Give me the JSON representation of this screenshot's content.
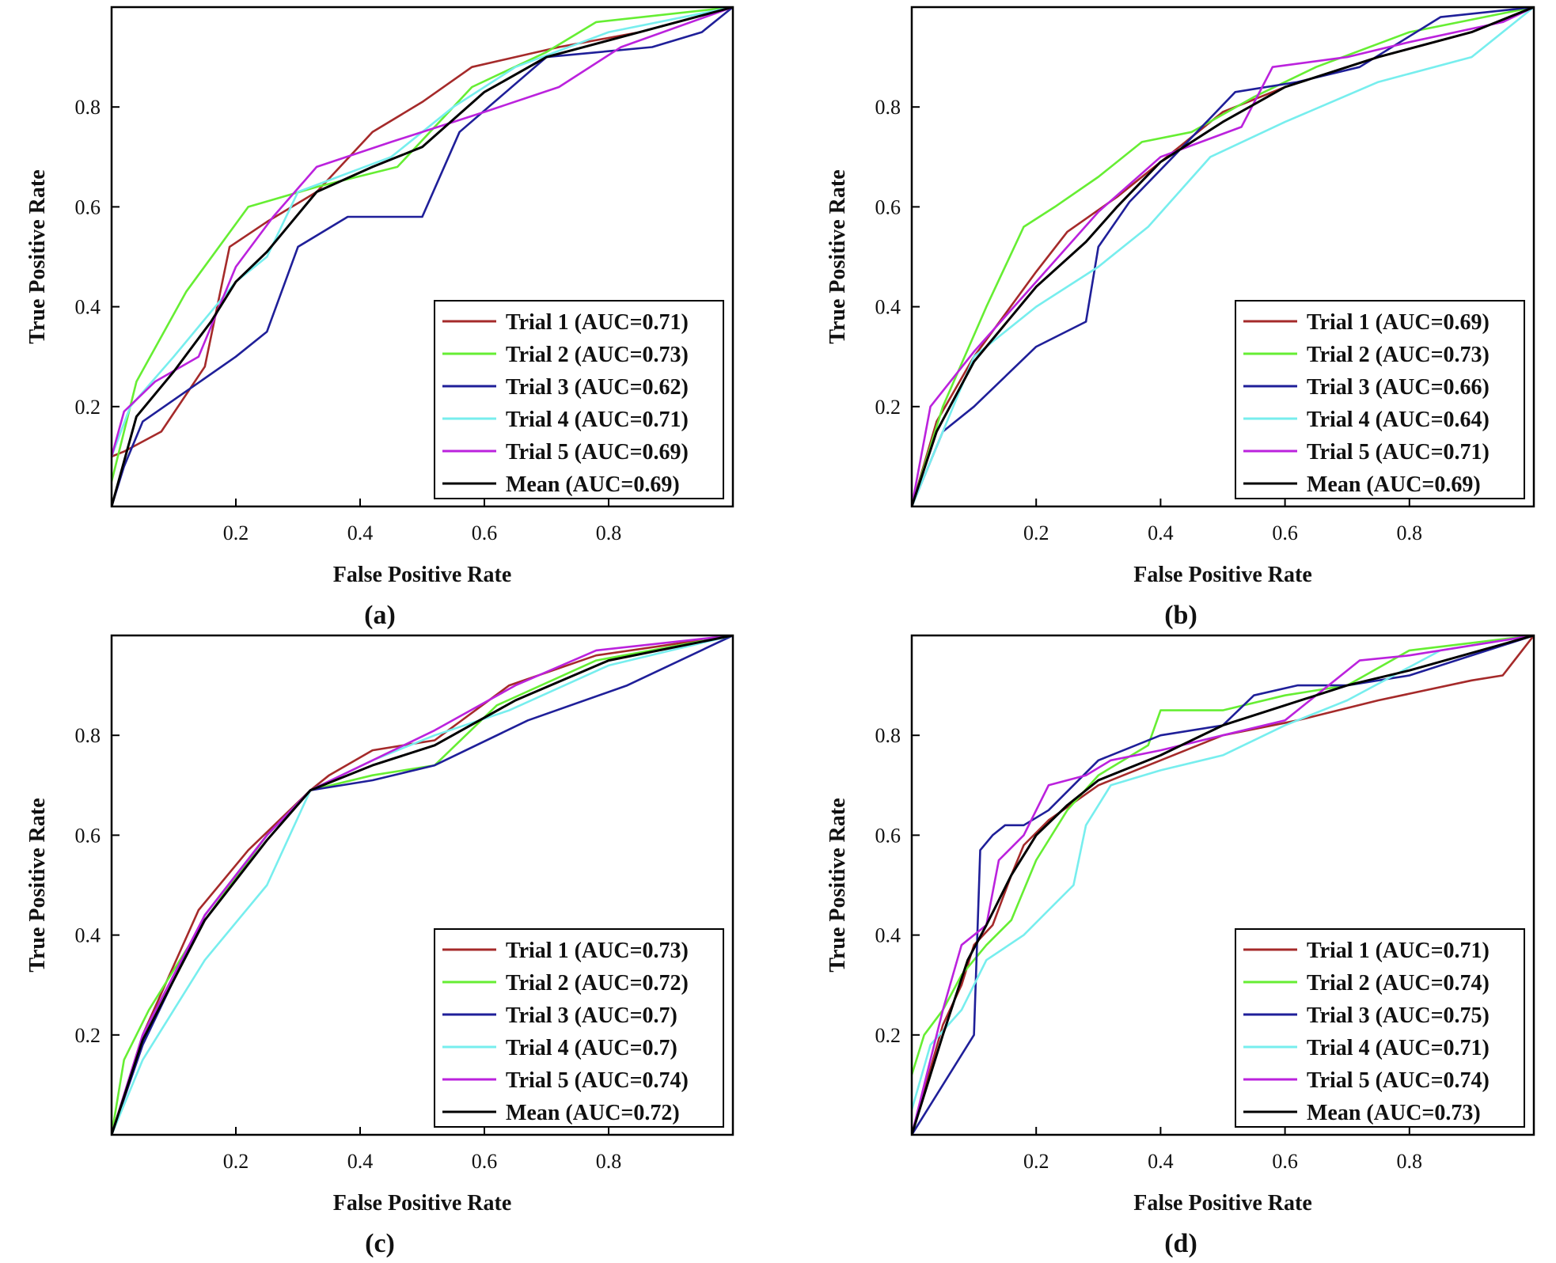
{
  "colors": {
    "trial1": "#a52a2a",
    "trial2": "#66ee33",
    "trial3": "#1f1f99",
    "trial4": "#77eeee",
    "trial5": "#bb22dd",
    "mean": "#000000"
  },
  "chart_data": [
    {
      "type": "line",
      "panel_label": "(a)",
      "xlabel": "False Positive Rate",
      "ylabel": "True Positive Rate",
      "xlim": [
        0,
        1
      ],
      "ylim": [
        0,
        1
      ],
      "xticks": [
        "0.2",
        "0.4",
        "0.6",
        "0.8"
      ],
      "yticks": [
        "0.2",
        "0.4",
        "0.6",
        "0.8"
      ],
      "legend_position": "bottom-right",
      "series": [
        {
          "name": "Trial 1 (AUC=0.71)",
          "color_key": "trial1",
          "x": [
            0,
            0.02,
            0.08,
            0.15,
            0.19,
            0.25,
            0.33,
            0.42,
            0.5,
            0.58,
            0.72,
            0.85,
            1
          ],
          "y": [
            0.1,
            0.11,
            0.15,
            0.28,
            0.52,
            0.57,
            0.63,
            0.75,
            0.81,
            0.88,
            0.92,
            0.95,
            1
          ]
        },
        {
          "name": "Trial 2 (AUC=0.73)",
          "color_key": "trial2",
          "x": [
            0,
            0.04,
            0.12,
            0.22,
            0.33,
            0.46,
            0.58,
            0.7,
            0.78,
            1
          ],
          "y": [
            0.05,
            0.25,
            0.43,
            0.6,
            0.64,
            0.68,
            0.84,
            0.91,
            0.97,
            1
          ]
        },
        {
          "name": "Trial 3 (AUC=0.62)",
          "color_key": "trial3",
          "x": [
            0,
            0.02,
            0.05,
            0.2,
            0.25,
            0.3,
            0.38,
            0.5,
            0.56,
            0.7,
            0.87,
            0.95,
            1
          ],
          "y": [
            0,
            0.08,
            0.17,
            0.3,
            0.35,
            0.52,
            0.58,
            0.58,
            0.75,
            0.9,
            0.92,
            0.95,
            1
          ]
        },
        {
          "name": "Trial 4 (AUC=0.71)",
          "color_key": "trial4",
          "x": [
            0,
            0.03,
            0.1,
            0.2,
            0.25,
            0.3,
            0.45,
            0.55,
            0.65,
            0.8,
            1
          ],
          "y": [
            0.1,
            0.2,
            0.3,
            0.45,
            0.5,
            0.63,
            0.7,
            0.8,
            0.88,
            0.95,
            1
          ]
        },
        {
          "name": "Trial 5 (AUC=0.69)",
          "color_key": "trial5",
          "x": [
            0,
            0.02,
            0.07,
            0.14,
            0.2,
            0.26,
            0.33,
            0.45,
            0.6,
            0.72,
            0.82,
            1
          ],
          "y": [
            0.1,
            0.19,
            0.25,
            0.3,
            0.48,
            0.58,
            0.68,
            0.73,
            0.79,
            0.84,
            0.92,
            1
          ]
        },
        {
          "name": "Mean (AUC=0.69)",
          "color_key": "mean",
          "x": [
            0,
            0.04,
            0.1,
            0.16,
            0.2,
            0.25,
            0.33,
            0.42,
            0.5,
            0.6,
            0.7,
            0.85,
            1
          ],
          "y": [
            0,
            0.18,
            0.27,
            0.37,
            0.45,
            0.51,
            0.63,
            0.68,
            0.72,
            0.83,
            0.9,
            0.95,
            1
          ]
        }
      ]
    },
    {
      "type": "line",
      "panel_label": "(b)",
      "xlabel": "False Positive Rate",
      "ylabel": "True Positive Rate",
      "xlim": [
        0,
        1
      ],
      "ylim": [
        0,
        1
      ],
      "xticks": [
        "0.2",
        "0.4",
        "0.6",
        "0.8"
      ],
      "yticks": [
        "0.2",
        "0.4",
        "0.6",
        "0.8"
      ],
      "legend_position": "bottom-right",
      "series": [
        {
          "name": "Trial 1 (AUC=0.69)",
          "color_key": "trial1",
          "x": [
            0,
            0.04,
            0.1,
            0.2,
            0.25,
            0.33,
            0.42,
            0.5,
            0.6,
            0.75,
            0.9,
            1
          ],
          "y": [
            0,
            0.17,
            0.3,
            0.47,
            0.55,
            0.62,
            0.71,
            0.79,
            0.84,
            0.9,
            0.95,
            1
          ]
        },
        {
          "name": "Trial 2 (AUC=0.73)",
          "color_key": "trial2",
          "x": [
            0,
            0.05,
            0.12,
            0.18,
            0.23,
            0.3,
            0.37,
            0.45,
            0.55,
            0.65,
            0.8,
            1
          ],
          "y": [
            0,
            0.2,
            0.4,
            0.56,
            0.6,
            0.66,
            0.73,
            0.75,
            0.82,
            0.88,
            0.95,
            1
          ]
        },
        {
          "name": "Trial 3 (AUC=0.66)",
          "color_key": "trial3",
          "x": [
            0,
            0.05,
            0.1,
            0.2,
            0.28,
            0.3,
            0.35,
            0.42,
            0.52,
            0.62,
            0.72,
            0.85,
            1
          ],
          "y": [
            0,
            0.15,
            0.2,
            0.32,
            0.37,
            0.52,
            0.61,
            0.7,
            0.83,
            0.85,
            0.88,
            0.98,
            1
          ]
        },
        {
          "name": "Trial 4 (AUC=0.64)",
          "color_key": "trial4",
          "x": [
            0,
            0.05,
            0.1,
            0.2,
            0.3,
            0.38,
            0.48,
            0.6,
            0.75,
            0.9,
            1
          ],
          "y": [
            0,
            0.15,
            0.3,
            0.4,
            0.48,
            0.56,
            0.7,
            0.77,
            0.85,
            0.9,
            1
          ]
        },
        {
          "name": "Trial 5 (AUC=0.71)",
          "color_key": "trial5",
          "x": [
            0,
            0.03,
            0.1,
            0.2,
            0.3,
            0.4,
            0.53,
            0.58,
            0.7,
            0.8,
            0.95,
            1
          ],
          "y": [
            0,
            0.2,
            0.31,
            0.45,
            0.59,
            0.7,
            0.76,
            0.88,
            0.9,
            0.93,
            0.97,
            1
          ]
        },
        {
          "name": "Mean (AUC=0.69)",
          "color_key": "mean",
          "x": [
            0,
            0.04,
            0.1,
            0.2,
            0.28,
            0.33,
            0.4,
            0.5,
            0.6,
            0.75,
            0.9,
            1
          ],
          "y": [
            0,
            0.15,
            0.29,
            0.44,
            0.53,
            0.6,
            0.69,
            0.77,
            0.84,
            0.9,
            0.95,
            1
          ]
        }
      ]
    },
    {
      "type": "line",
      "panel_label": "(c)",
      "xlabel": "False Positive Rate",
      "ylabel": "True Positive Rate",
      "xlim": [
        0,
        1
      ],
      "ylim": [
        0,
        1
      ],
      "xticks": [
        "0.2",
        "0.4",
        "0.6",
        "0.8"
      ],
      "yticks": [
        "0.2",
        "0.4",
        "0.6",
        "0.8"
      ],
      "legend_position": "bottom-right",
      "series": [
        {
          "name": "Trial 1 (AUC=0.73)",
          "color_key": "trial1",
          "x": [
            0,
            0.05,
            0.14,
            0.22,
            0.32,
            0.35,
            0.42,
            0.52,
            0.64,
            0.78,
            1
          ],
          "y": [
            0,
            0.2,
            0.45,
            0.57,
            0.69,
            0.72,
            0.77,
            0.79,
            0.9,
            0.96,
            1
          ]
        },
        {
          "name": "Trial 2 (AUC=0.72)",
          "color_key": "trial2",
          "x": [
            0,
            0.02,
            0.06,
            0.15,
            0.25,
            0.32,
            0.42,
            0.52,
            0.62,
            0.78,
            1
          ],
          "y": [
            0,
            0.15,
            0.25,
            0.43,
            0.6,
            0.69,
            0.72,
            0.74,
            0.86,
            0.95,
            1
          ]
        },
        {
          "name": "Trial 3 (AUC=0.7)",
          "color_key": "trial3",
          "x": [
            0,
            0.05,
            0.15,
            0.25,
            0.32,
            0.42,
            0.52,
            0.67,
            0.83,
            1
          ],
          "y": [
            0,
            0.18,
            0.44,
            0.6,
            0.69,
            0.71,
            0.74,
            0.83,
            0.9,
            1
          ]
        },
        {
          "name": "Trial 4 (AUC=0.7)",
          "color_key": "trial4",
          "x": [
            0,
            0.05,
            0.15,
            0.25,
            0.32,
            0.42,
            0.52,
            0.64,
            0.8,
            1
          ],
          "y": [
            0,
            0.15,
            0.35,
            0.5,
            0.69,
            0.75,
            0.8,
            0.85,
            0.94,
            1
          ]
        },
        {
          "name": "Trial 5 (AUC=0.74)",
          "color_key": "trial5",
          "x": [
            0,
            0.05,
            0.15,
            0.25,
            0.32,
            0.42,
            0.52,
            0.65,
            0.78,
            1
          ],
          "y": [
            0,
            0.2,
            0.44,
            0.6,
            0.69,
            0.75,
            0.81,
            0.9,
            0.97,
            1
          ]
        },
        {
          "name": "Mean (AUC=0.72)",
          "color_key": "mean",
          "x": [
            0,
            0.05,
            0.15,
            0.25,
            0.32,
            0.42,
            0.52,
            0.65,
            0.8,
            1
          ],
          "y": [
            0,
            0.19,
            0.43,
            0.59,
            0.69,
            0.74,
            0.78,
            0.87,
            0.95,
            1
          ]
        }
      ]
    },
    {
      "type": "line",
      "panel_label": "(d)",
      "xlabel": "False Positive Rate",
      "ylabel": "True Positive Rate",
      "xlim": [
        0,
        1
      ],
      "ylim": [
        0,
        1
      ],
      "xticks": [
        "0.2",
        "0.4",
        "0.6",
        "0.8"
      ],
      "yticks": [
        "0.2",
        "0.4",
        "0.6",
        "0.8"
      ],
      "legend_position": "bottom-right",
      "series": [
        {
          "name": "Trial 1 (AUC=0.71)",
          "color_key": "trial1",
          "x": [
            0,
            0.05,
            0.08,
            0.1,
            0.13,
            0.16,
            0.18,
            0.22,
            0.3,
            0.4,
            0.5,
            0.62,
            0.75,
            0.9,
            0.95,
            1
          ],
          "y": [
            0,
            0.22,
            0.3,
            0.38,
            0.42,
            0.52,
            0.58,
            0.63,
            0.7,
            0.75,
            0.8,
            0.83,
            0.87,
            0.91,
            0.92,
            1
          ]
        },
        {
          "name": "Trial 2 (AUC=0.74)",
          "color_key": "trial2",
          "x": [
            0,
            0.02,
            0.05,
            0.08,
            0.12,
            0.16,
            0.2,
            0.25,
            0.3,
            0.38,
            0.4,
            0.5,
            0.6,
            0.7,
            0.8,
            1
          ],
          "y": [
            0.12,
            0.2,
            0.25,
            0.32,
            0.38,
            0.43,
            0.55,
            0.65,
            0.72,
            0.78,
            0.85,
            0.85,
            0.88,
            0.9,
            0.97,
            1
          ]
        },
        {
          "name": "Trial 3 (AUC=0.75)",
          "color_key": "trial3",
          "x": [
            0,
            0.1,
            0.11,
            0.13,
            0.15,
            0.18,
            0.22,
            0.3,
            0.4,
            0.5,
            0.55,
            0.62,
            0.7,
            0.8,
            1
          ],
          "y": [
            0,
            0.2,
            0.57,
            0.6,
            0.62,
            0.62,
            0.65,
            0.75,
            0.8,
            0.82,
            0.88,
            0.9,
            0.9,
            0.92,
            1
          ]
        },
        {
          "name": "Trial 4 (AUC=0.71)",
          "color_key": "trial4",
          "x": [
            0,
            0.03,
            0.08,
            0.12,
            0.18,
            0.22,
            0.26,
            0.28,
            0.32,
            0.4,
            0.5,
            0.6,
            0.7,
            0.85,
            1
          ],
          "y": [
            0.05,
            0.18,
            0.25,
            0.35,
            0.4,
            0.45,
            0.5,
            0.62,
            0.7,
            0.73,
            0.76,
            0.82,
            0.87,
            0.97,
            1
          ]
        },
        {
          "name": "Trial 5 (AUC=0.74)",
          "color_key": "trial5",
          "x": [
            0,
            0.05,
            0.08,
            0.12,
            0.14,
            0.18,
            0.22,
            0.28,
            0.32,
            0.4,
            0.5,
            0.6,
            0.72,
            0.8,
            1
          ],
          "y": [
            0,
            0.25,
            0.38,
            0.42,
            0.55,
            0.6,
            0.7,
            0.72,
            0.75,
            0.77,
            0.8,
            0.83,
            0.95,
            0.96,
            1
          ]
        },
        {
          "name": "Mean (AUC=0.73)",
          "color_key": "mean",
          "x": [
            0,
            0.05,
            0.09,
            0.12,
            0.16,
            0.2,
            0.25,
            0.3,
            0.4,
            0.5,
            0.6,
            0.7,
            0.8,
            1
          ],
          "y": [
            0,
            0.2,
            0.35,
            0.42,
            0.52,
            0.6,
            0.66,
            0.71,
            0.76,
            0.82,
            0.86,
            0.9,
            0.93,
            1
          ]
        }
      ]
    }
  ]
}
